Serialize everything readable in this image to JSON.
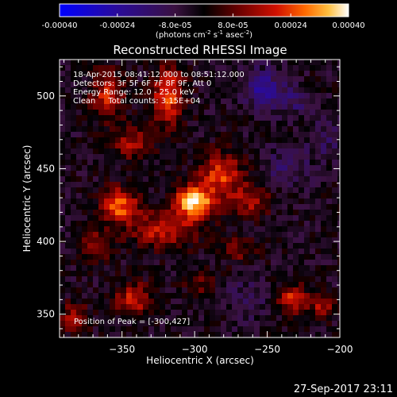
{
  "chart_data": {
    "type": "heatmap",
    "title": "Reconstructed RHESSI Image",
    "xlabel": "Heliocentric X (arcsec)",
    "ylabel": "Heliocentric Y (arcsec)",
    "xlim": [
      -393,
      -200
    ],
    "ylim": [
      334,
      525
    ],
    "x_ticks": [
      -350,
      -300,
      -250,
      -200
    ],
    "y_ticks": [
      350,
      400,
      450,
      500
    ],
    "colorbar": {
      "range": [
        -0.0004,
        0.0004
      ],
      "tick_values": [
        -0.0004,
        -0.00024,
        -8e-05,
        8e-05,
        0.00024,
        0.0004
      ],
      "tick_labels": [
        "-0.00040",
        "-0.00024",
        "-8.0e-05",
        "8.0e-05",
        "0.00024",
        "0.00040"
      ],
      "units_label": "(photons cm",
      "units_sup1": "-2",
      "units_mid": " s",
      "units_sup2": "-1",
      "units_mid2": " asec",
      "units_sup3": "-2",
      "units_end": ")"
    },
    "annotations": [
      "18-Apr-2015 08:41:12.000 to 08:51:12.000",
      "Detectors: 3F 5F 6F 7F 8F 9F, Att 0",
      "Energy Range: 12.0 - 25.0 keV",
      "Clean     Total counts: 3.15E+04"
    ],
    "peak_label": "Position of Peak = [-300,427]",
    "peak": {
      "x": -300,
      "y": 427,
      "value": 0.0004
    },
    "sources": [
      {
        "x": -300,
        "y": 427,
        "value": 0.0004,
        "sx": 10,
        "sy": 8
      },
      {
        "x": -318,
        "y": 500,
        "value": 0.00028,
        "sx": 8,
        "sy": 14
      },
      {
        "x": -352,
        "y": 425,
        "value": 0.0003,
        "sx": 9,
        "sy": 8
      },
      {
        "x": -360,
        "y": 500,
        "value": 0.00022,
        "sx": 8,
        "sy": 12
      },
      {
        "x": -322,
        "y": 408,
        "value": 0.00022,
        "sx": 16,
        "sy": 9
      },
      {
        "x": -282,
        "y": 447,
        "value": 0.00026,
        "sx": 10,
        "sy": 10
      },
      {
        "x": -262,
        "y": 428,
        "value": 0.00018,
        "sx": 10,
        "sy": 8
      },
      {
        "x": -343,
        "y": 468,
        "value": 0.00018,
        "sx": 10,
        "sy": 8
      },
      {
        "x": -342,
        "y": 360,
        "value": 0.00022,
        "sx": 9,
        "sy": 8
      },
      {
        "x": -368,
        "y": 397,
        "value": 0.00018,
        "sx": 8,
        "sy": 8
      },
      {
        "x": -383,
        "y": 348,
        "value": 0.00018,
        "sx": 7,
        "sy": 7
      },
      {
        "x": -232,
        "y": 360,
        "value": 0.00024,
        "sx": 7,
        "sy": 7
      },
      {
        "x": -212,
        "y": 355,
        "value": 0.00018,
        "sx": 6,
        "sy": 6
      },
      {
        "x": -270,
        "y": 394,
        "value": 0.00014,
        "sx": 8,
        "sy": 6
      },
      {
        "x": -296,
        "y": 372,
        "value": 0.00012,
        "sx": 8,
        "sy": 6
      },
      {
        "x": -253,
        "y": 505,
        "value": -0.00018,
        "sx": 9,
        "sy": 9
      },
      {
        "x": -232,
        "y": 497,
        "value": -0.0001,
        "sx": 8,
        "sy": 8
      },
      {
        "x": -236,
        "y": 450,
        "value": -0.0001,
        "sx": 10,
        "sy": 10
      },
      {
        "x": -210,
        "y": 470,
        "value": -8e-05,
        "sx": 9,
        "sy": 9
      },
      {
        "x": -265,
        "y": 360,
        "value": -8e-05,
        "sx": 9,
        "sy": 9
      }
    ]
  },
  "timestamp": "27-Sep-2017 23:11"
}
